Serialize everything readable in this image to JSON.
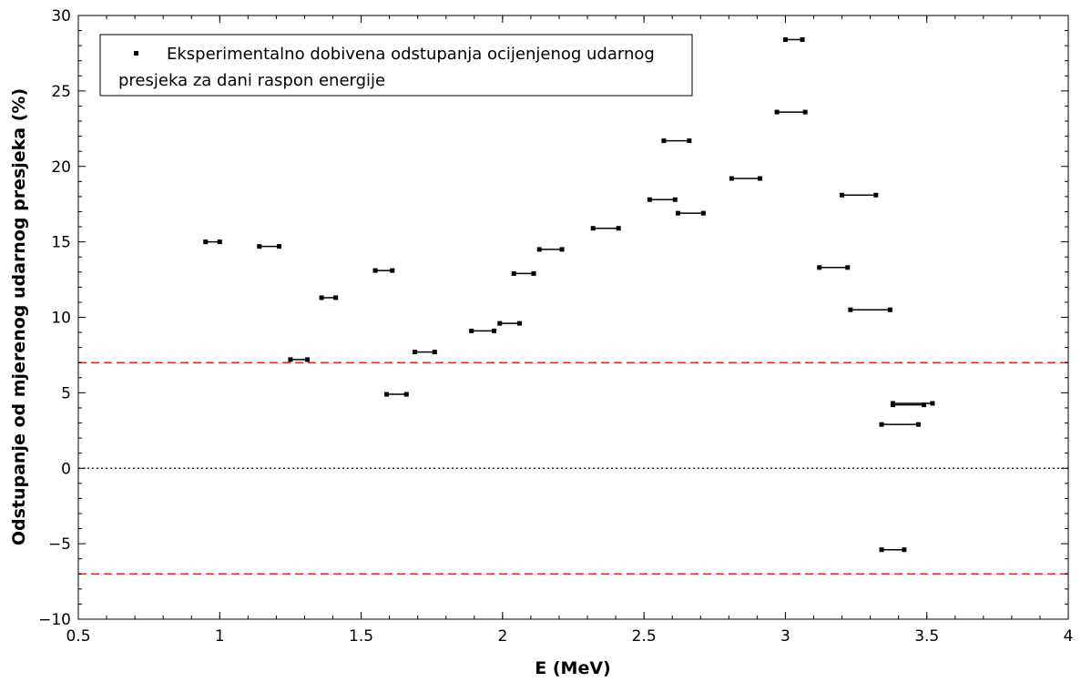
{
  "chart_data": {
    "type": "scatter",
    "xlabel": "E (MeV)",
    "ylabel": "Odstupanje od mjerenog udarnog presjeka (%)",
    "xlim": [
      0.5,
      4
    ],
    "ylim": [
      -10,
      30
    ],
    "x_ticks": [
      "0.5",
      "1",
      "1.5",
      "2",
      "2.5",
      "3",
      "3.5",
      "4"
    ],
    "y_ticks": [
      "−10",
      "−5",
      "0",
      "5",
      "10",
      "15",
      "20",
      "25",
      "30"
    ],
    "grid": false,
    "legend": {
      "placement": "top-left",
      "line1": "Eksperimentalno dobivena odstupanja ocijenjenog udarnog",
      "line2": "presjeka za dani raspon energije"
    },
    "reference_lines": [
      {
        "y": 7,
        "style": "dashed",
        "color": "#e8281e"
      },
      {
        "y": -7,
        "style": "dashed",
        "color": "#e8281e"
      },
      {
        "y": 0,
        "style": "dotted",
        "color": "#000000"
      }
    ],
    "series": [
      {
        "marker_color": "#000000",
        "points": [
          {
            "x_min": 0.95,
            "x_max": 1.0,
            "y": 15.0
          },
          {
            "x_min": 1.14,
            "x_max": 1.21,
            "y": 14.7
          },
          {
            "x_min": 1.25,
            "x_max": 1.31,
            "y": 7.2
          },
          {
            "x_min": 1.36,
            "x_max": 1.41,
            "y": 11.3
          },
          {
            "x_min": 1.55,
            "x_max": 1.61,
            "y": 13.1
          },
          {
            "x_min": 1.59,
            "x_max": 1.66,
            "y": 4.9
          },
          {
            "x_min": 1.69,
            "x_max": 1.76,
            "y": 7.7
          },
          {
            "x_min": 1.89,
            "x_max": 1.97,
            "y": 9.1
          },
          {
            "x_min": 1.99,
            "x_max": 2.06,
            "y": 9.6
          },
          {
            "x_min": 2.04,
            "x_max": 2.11,
            "y": 12.9
          },
          {
            "x_min": 2.13,
            "x_max": 2.21,
            "y": 14.5
          },
          {
            "x_min": 2.32,
            "x_max": 2.41,
            "y": 15.9
          },
          {
            "x_min": 2.52,
            "x_max": 2.61,
            "y": 17.8
          },
          {
            "x_min": 2.57,
            "x_max": 2.66,
            "y": 21.7
          },
          {
            "x_min": 2.62,
            "x_max": 2.71,
            "y": 16.9
          },
          {
            "x_min": 2.81,
            "x_max": 2.91,
            "y": 19.2
          },
          {
            "x_min": 2.97,
            "x_max": 3.07,
            "y": 23.6
          },
          {
            "x_min": 3.0,
            "x_max": 3.06,
            "y": 28.4
          },
          {
            "x_min": 3.12,
            "x_max": 3.22,
            "y": 13.3
          },
          {
            "x_min": 3.2,
            "x_max": 3.32,
            "y": 18.1
          },
          {
            "x_min": 3.23,
            "x_max": 3.37,
            "y": 10.5
          },
          {
            "x_min": 3.34,
            "x_max": 3.47,
            "y": 2.9
          },
          {
            "x_min": 3.38,
            "x_max": 3.52,
            "y": 4.3
          },
          {
            "x_min": 3.38,
            "x_max": 3.49,
            "y": 4.2
          },
          {
            "x_min": 3.34,
            "x_max": 3.42,
            "y": -5.4
          }
        ]
      }
    ]
  }
}
